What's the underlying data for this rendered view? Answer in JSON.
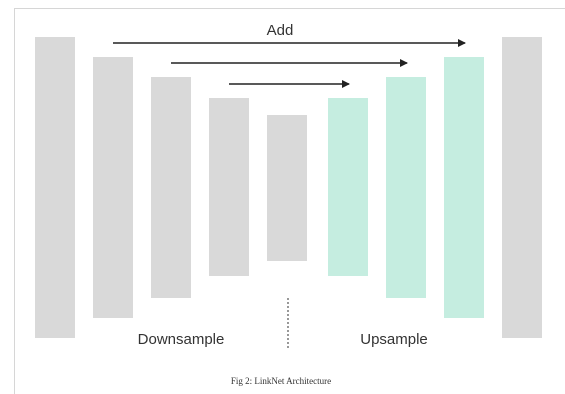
{
  "diagram": {
    "skip_label": "Add",
    "left_label": "Downsample",
    "right_label": "Upsample",
    "caption": "Fig 2: LinkNet Architecture"
  },
  "colors": {
    "encoder": "#d9d9d9",
    "decoder": "#c5ede0",
    "arrow": "#222222",
    "divider": "#555555"
  }
}
